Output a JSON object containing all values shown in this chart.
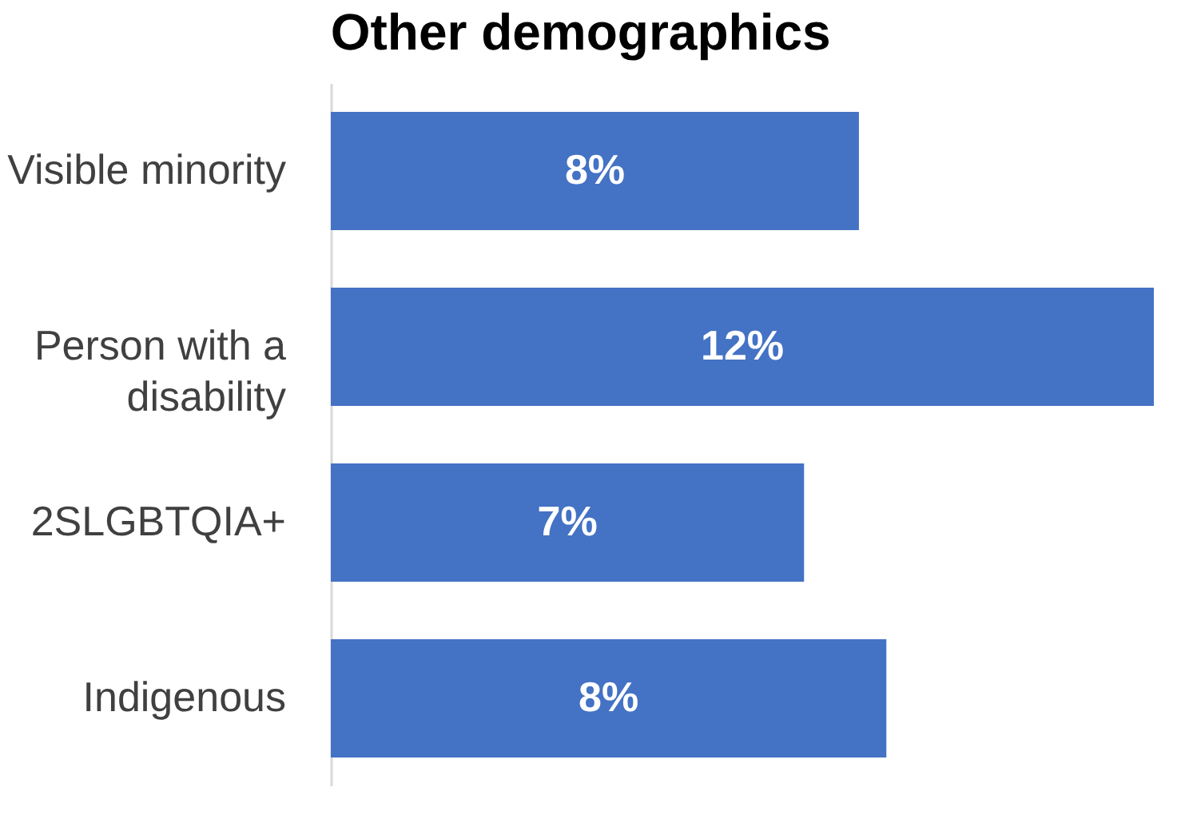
{
  "chart_data": {
    "type": "bar",
    "orientation": "horizontal",
    "title": "Other demographics",
    "categories": [
      "Visible minority",
      "Person with a disability",
      "2SLGBTQIA+",
      "Indigenous"
    ],
    "values": [
      7.7,
      12,
      6.9,
      8.1
    ],
    "color": "#4472c4",
    "value_labels": [
      "8%",
      "12%",
      "7%",
      "8%"
    ]
  }
}
